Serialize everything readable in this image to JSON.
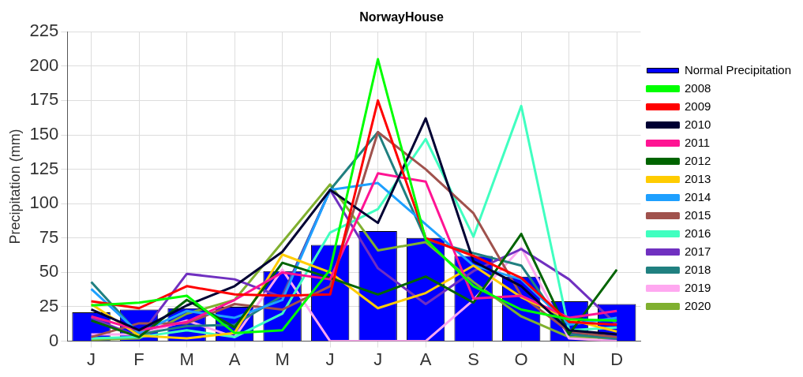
{
  "chart_data": {
    "type": "line",
    "title": "NorwayHouse",
    "ylabel": "Precipitation (mm)",
    "categories": [
      "J",
      "F",
      "M",
      "A",
      "M",
      "J",
      "J",
      "A",
      "S",
      "O",
      "N",
      "D"
    ],
    "ylim": [
      0,
      225
    ],
    "yticks": [
      0,
      25,
      50,
      75,
      100,
      125,
      150,
      175,
      200,
      225
    ],
    "grid": true,
    "legend": "right",
    "marker": "none",
    "line_style": "solid",
    "series": [
      {
        "name": "Normal Precipitation",
        "type": "bar",
        "color": "#0000ff",
        "values": [
          21,
          23,
          24,
          25,
          51,
          70,
          80,
          75,
          62,
          47,
          29,
          27
        ]
      },
      {
        "name": "2008",
        "color": "#00ff00",
        "values": [
          26,
          28,
          33,
          6,
          8,
          52,
          205,
          74,
          40,
          23,
          16,
          15
        ]
      },
      {
        "name": "2009",
        "color": "#ff0000",
        "values": [
          29,
          24,
          40,
          34,
          33,
          34,
          175,
          75,
          62,
          46,
          14,
          12
        ]
      },
      {
        "name": "2010",
        "color": "#000033",
        "values": [
          23,
          8,
          26,
          40,
          65,
          110,
          86,
          162,
          58,
          40,
          8,
          5
        ]
      },
      {
        "name": "2011",
        "color": "#ff1493",
        "values": [
          18,
          8,
          14,
          30,
          50,
          45,
          122,
          116,
          31,
          33,
          17,
          22
        ]
      },
      {
        "name": "2012",
        "color": "#006400",
        "values": [
          15,
          3,
          30,
          10,
          57,
          46,
          34,
          47,
          28,
          78,
          5,
          52
        ]
      },
      {
        "name": "2013",
        "color": "#ffcc00",
        "values": [
          27,
          4,
          2,
          6,
          63,
          50,
          24,
          35,
          55,
          32,
          16,
          7
        ]
      },
      {
        "name": "2014",
        "color": "#1ea0ff",
        "values": [
          38,
          6,
          22,
          17,
          30,
          110,
          115,
          85,
          55,
          45,
          12,
          17
        ]
      },
      {
        "name": "2015",
        "color": "#a0524d",
        "values": [
          3,
          13,
          13,
          27,
          23,
          40,
          152,
          125,
          93,
          33,
          7,
          3
        ]
      },
      {
        "name": "2016",
        "color": "#40ffc0",
        "values": [
          2,
          3,
          8,
          3,
          20,
          79,
          96,
          147,
          76,
          171,
          8,
          10
        ]
      },
      {
        "name": "2017",
        "color": "#7030c0",
        "values": [
          17,
          3,
          49,
          45,
          32,
          110,
          53,
          27,
          51,
          67,
          45,
          12
        ]
      },
      {
        "name": "2018",
        "color": "#208080",
        "values": [
          43,
          5,
          11,
          12,
          33,
          110,
          152,
          74,
          64,
          55,
          5,
          2
        ]
      },
      {
        "name": "2019",
        "color": "#ffa8f0",
        "values": [
          5,
          5,
          15,
          3,
          52,
          0,
          0,
          0,
          30,
          68,
          2,
          0
        ]
      },
      {
        "name": "2020",
        "color": "#80b030",
        "values": [
          1,
          2,
          20,
          30,
          72,
          114,
          66,
          72,
          43,
          18,
          3,
          2
        ]
      }
    ]
  }
}
